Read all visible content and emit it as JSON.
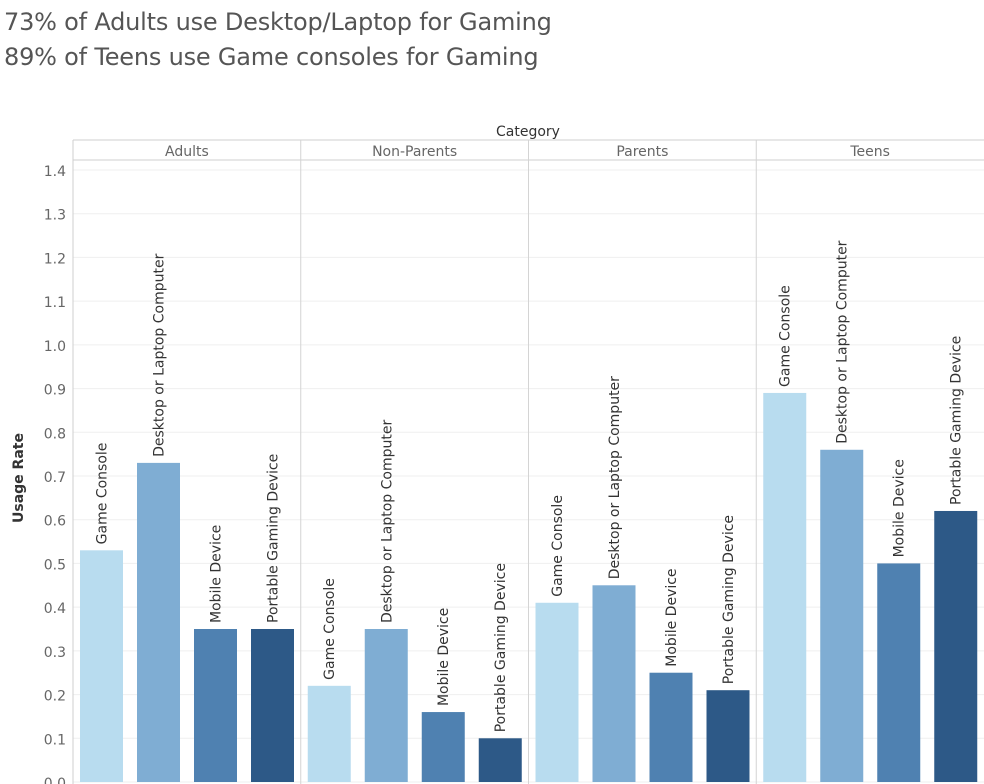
{
  "title_lines": [
    "73% of Adults use Desktop/Laptop for Gaming",
    "89% of Teens use Game consoles for Gaming"
  ],
  "chart_data": {
    "type": "bar",
    "facet_header": "Category",
    "facets": [
      "Adults",
      "Non-Parents",
      "Parents",
      "Teens"
    ],
    "categories": [
      "Game Console",
      "Desktop or Laptop Computer",
      "Mobile Device",
      "Portable Gaming Device"
    ],
    "values": {
      "Adults": [
        0.53,
        0.73,
        0.35,
        0.35
      ],
      "Non-Parents": [
        0.22,
        0.35,
        0.16,
        0.1
      ],
      "Parents": [
        0.41,
        0.45,
        0.25,
        0.21
      ],
      "Teens": [
        0.89,
        0.76,
        0.5,
        0.62
      ]
    },
    "ylabel": "Usage Rate",
    "ylim": [
      0,
      1.4
    ],
    "yticks": [
      "0.0",
      "0.1",
      "0.2",
      "0.3",
      "0.4",
      "0.5",
      "0.6",
      "0.7",
      "0.8",
      "0.9",
      "1.0",
      "1.1",
      "1.2",
      "1.3",
      "1.4"
    ],
    "colors": [
      "#b8dcef",
      "#7fadd3",
      "#4f81b1",
      "#2d5987"
    ],
    "grid": true
  }
}
